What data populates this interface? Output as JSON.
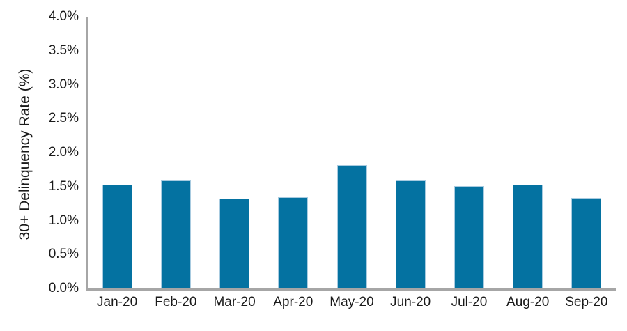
{
  "chart_data": {
    "type": "bar",
    "title": "",
    "xlabel": "",
    "ylabel": "30+ Delinquency Rate (%)",
    "unit": "%",
    "categories": [
      "Jan-20",
      "Feb-20",
      "Mar-20",
      "Apr-20",
      "May-20",
      "Jun-20",
      "Jul-20",
      "Aug-20",
      "Sep-20"
    ],
    "values": [
      1.53,
      1.59,
      1.32,
      1.34,
      1.82,
      1.59,
      1.51,
      1.53,
      1.33
    ],
    "ylim": [
      0.0,
      4.0
    ],
    "ytick_step": 0.5,
    "ytick_labels": [
      "0.0%",
      "0.5%",
      "1.0%",
      "1.5%",
      "2.0%",
      "2.5%",
      "3.0%",
      "3.5%",
      "4.0%"
    ],
    "grid": false,
    "legend": null,
    "colors": {
      "bar_fill": "#0472a1",
      "bar_edge": "#a8cbe0",
      "axis_line": "#a6a6a6",
      "text": "#1a1a1a",
      "background": "#ffffff"
    }
  }
}
